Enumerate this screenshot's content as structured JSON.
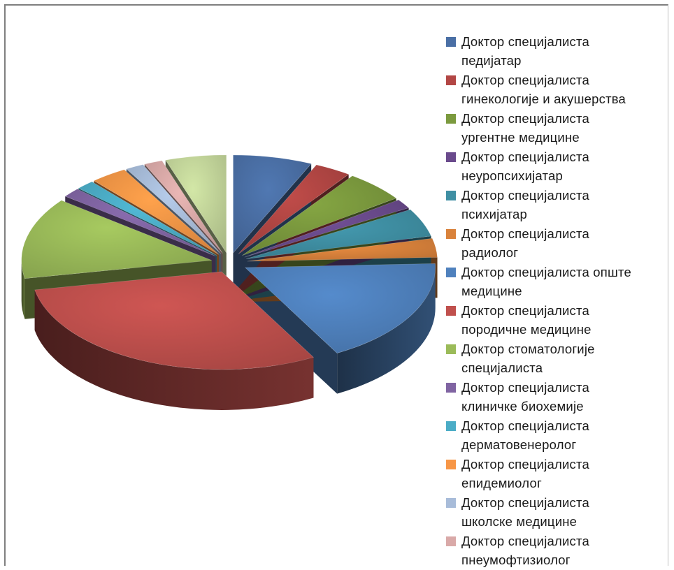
{
  "chart_data": {
    "type": "pie",
    "style": "3d-exploded",
    "legend_position": "right",
    "series": [
      {
        "label": "Доктор специјалиста педијатар",
        "label_lines": [
          "Доктор специјалиста",
          "педијатар"
        ],
        "value": 6.5,
        "color": "#4a6fa5"
      },
      {
        "label": "Доктор специјалиста гинекологије и акушерства",
        "label_lines": [
          "Доктор специјалиста",
          "гинекологије и акушерства"
        ],
        "value": 3.0,
        "color": "#b24644"
      },
      {
        "label": "Доктор специјалиста ургентне медицине",
        "label_lines": [
          "Доктор специјалиста",
          "ургентне медицине"
        ],
        "value": 5.0,
        "color": "#7b9a3e"
      },
      {
        "label": "Доктор специјалиста неуропсихијатар",
        "label_lines": [
          "Доктор специјалиста",
          "неуропсихијатар"
        ],
        "value": 1.5,
        "color": "#6a4a8c"
      },
      {
        "label": "Доктор специјалиста психијатар",
        "label_lines": [
          "Доктор специјалиста",
          "психијатар"
        ],
        "value": 4.5,
        "color": "#3f8fa3"
      },
      {
        "label": "Доктор специјалиста радиолог",
        "label_lines": [
          "Доктор специјалиста",
          "радиолог"
        ],
        "value": 3.0,
        "color": "#d9823b"
      },
      {
        "label": "Доктор специјалиста опште медицине",
        "label_lines": [
          "Доктор специјалиста опште",
          "медицине"
        ],
        "value": 17.0,
        "color": "#4f81bd"
      },
      {
        "label": "Доктор специјалиста породичне медицине",
        "label_lines": [
          "Доктор специјалиста",
          "породичне медицине"
        ],
        "value": 29.0,
        "color": "#c0504d"
      },
      {
        "label": "Доктор стоматологије специјалиста",
        "label_lines": [
          "Доктор стоматологије",
          "специјалиста"
        ],
        "value": 13.0,
        "color": "#9bbb59"
      },
      {
        "label": "Доктор специјалиста клиничке биохемије",
        "label_lines": [
          "Доктор специјалиста",
          "клиничке биохемије"
        ],
        "value": 1.5,
        "color": "#8064a2"
      },
      {
        "label": "Доктор специјалиста дерматовенеролог",
        "label_lines": [
          "Доктор специјалиста",
          "дерматовенеролог"
        ],
        "value": 1.5,
        "color": "#4bacc6"
      },
      {
        "label": "Доктор специјалиста епидемиолог",
        "label_lines": [
          "Доктор специјалиста",
          "епидемиолог"
        ],
        "value": 3.0,
        "color": "#f79646"
      },
      {
        "label": "Доктор специјалиста школске медицине",
        "label_lines": [
          "Доктор специјалиста",
          "школске медицине"
        ],
        "value": 1.5,
        "color": "#a8bcd9"
      },
      {
        "label": "Доктор специјалиста пнеумофтизиолог",
        "label_lines": [
          "Доктор специјалиста",
          "пнеумофтизиолог"
        ],
        "value": 1.5,
        "color": "#d9a9a8"
      },
      {
        "label": "",
        "label_lines": [],
        "value": 5.0,
        "color": "#c3d69b"
      }
    ]
  }
}
